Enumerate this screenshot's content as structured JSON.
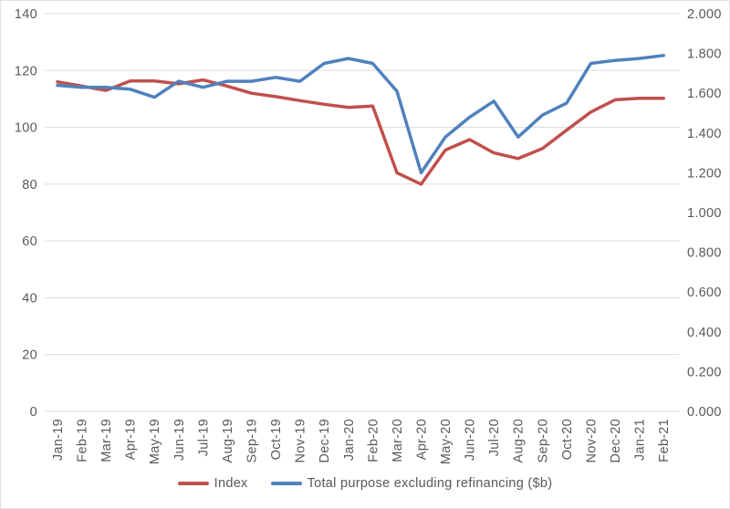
{
  "chart_data": {
    "type": "line",
    "title": "",
    "xlabel": "",
    "ylabel_left": "",
    "ylabel_right": "",
    "grid": true,
    "legend_position": "bottom",
    "categories": [
      "Jan-19",
      "Feb-19",
      "Mar-19",
      "Apr-19",
      "May-19",
      "Jun-19",
      "Jul-19",
      "Aug-19",
      "Sep-19",
      "Oct-19",
      "Nov-19",
      "Dec-19",
      "Jan-20",
      "Feb-20",
      "Mar-20",
      "Apr-20",
      "May-20",
      "Jun-20",
      "Jul-20",
      "Aug-20",
      "Sep-20",
      "Oct-20",
      "Nov-20",
      "Dec-20",
      "Jan-21",
      "Feb-21"
    ],
    "series": [
      {
        "name": "Index",
        "axis": "left",
        "color": "#C0504D",
        "values": [
          116.0,
          114.5,
          113.0,
          116.3,
          116.3,
          115.3,
          116.7,
          114.5,
          112.0,
          110.8,
          109.4,
          108.1,
          107.0,
          107.5,
          84.0,
          80.0,
          92.0,
          95.7,
          91.0,
          89.0,
          92.5,
          99.0,
          105.4,
          109.7,
          110.2,
          110.2
        ]
      },
      {
        "name": "Total purpose excluding refinancing ($b)",
        "axis": "right",
        "color": "#4F81BD",
        "values": [
          1.64,
          1.63,
          1.63,
          1.62,
          1.58,
          1.66,
          1.63,
          1.66,
          1.66,
          1.68,
          1.66,
          1.75,
          1.775,
          1.75,
          1.61,
          1.2,
          1.38,
          1.48,
          1.56,
          1.38,
          1.49,
          1.55,
          1.75,
          1.765,
          1.775,
          1.79
        ]
      }
    ],
    "left_axis": {
      "min": 0,
      "max": 140,
      "step": 20,
      "tick_labels": [
        "140",
        "120",
        "100",
        "80",
        "60",
        "40",
        "20",
        "0"
      ]
    },
    "right_axis": {
      "min": 0,
      "max": 2,
      "step": 0.2,
      "tick_labels": [
        "2.000",
        "1.800",
        "1.600",
        "1.400",
        "1.200",
        "1.000",
        "0.800",
        "0.600",
        "0.400",
        "0.200",
        "0.000"
      ]
    }
  },
  "legend": {
    "items": [
      {
        "label": "Index",
        "color": "#C0504D"
      },
      {
        "label": "Total purpose excluding refinancing ($b)",
        "color": "#4F81BD"
      }
    ]
  },
  "colors": {
    "gridline": "#D9D9D9",
    "axis_text": "#595959",
    "series_index": "#C0504D",
    "series_total": "#4F81BD",
    "background": "#FFFFFF"
  }
}
